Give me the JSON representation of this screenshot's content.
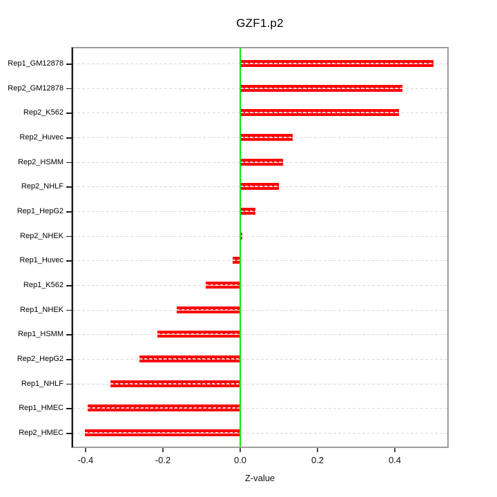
{
  "chart_data": {
    "type": "bar",
    "orientation": "horizontal",
    "title": "GZF1.p2",
    "xlabel": "Z-value",
    "ylabel": "",
    "categories": [
      "Rep1_GM12878",
      "Rep2_GM12878",
      "Rep2_K562",
      "Rep2_Huvec",
      "Rep2_HSMM",
      "Rep2_NHLF",
      "Rep1_HepG2",
      "Rep2_NHEK",
      "Rep1_Huvec",
      "Rep1_K562",
      "Rep1_NHEK",
      "Rep1_HSMM",
      "Rep2_HepG2",
      "Rep1_NHLF",
      "Rep1_HMEC",
      "Rep2_HMEC"
    ],
    "values": [
      0.5,
      0.42,
      0.41,
      0.135,
      0.11,
      0.1,
      0.04,
      0.005,
      -0.02,
      -0.09,
      -0.165,
      -0.215,
      -0.26,
      -0.335,
      -0.395,
      -0.402
    ],
    "x_ticks": [
      -0.4,
      -0.2,
      0.0,
      0.2,
      0.4
    ],
    "x_tick_labels": [
      "-0.4",
      "-0.2",
      "0.0",
      "0.2",
      "0.4"
    ],
    "xlim": [
      -0.434,
      0.536
    ],
    "grid": true,
    "grid_style": "dashed",
    "legend_position": "none",
    "colors": {
      "bar": "#ff0000",
      "zero_line": "#00ee00",
      "gridline": "#d9d9d9",
      "box_border": "#9c9c9c",
      "axis": "#1a1a1a",
      "background": "#ffffff"
    }
  }
}
